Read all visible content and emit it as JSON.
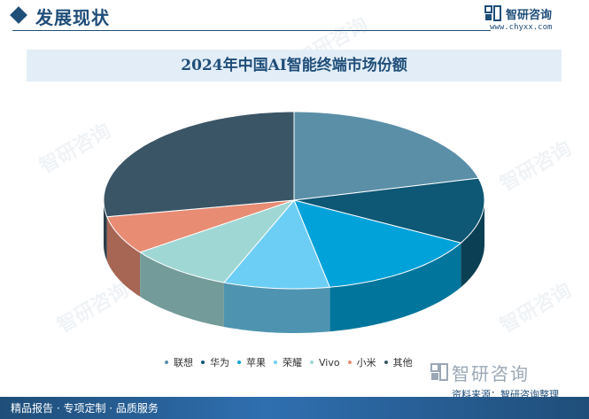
{
  "header": {
    "section_title": "发展现状",
    "brand_name": "智研咨询",
    "brand_url": "www.chyxx.com"
  },
  "chart_data": {
    "type": "pie",
    "title": "2024年中国AI智能终端市场份额",
    "categories": [
      "联想",
      "华为",
      "苹果",
      "荣耀",
      "Vivo",
      "小米",
      "其他"
    ],
    "values": [
      21,
      12,
      14,
      9,
      9,
      7,
      28
    ],
    "colors": [
      "#5b8fa8",
      "#0e5775",
      "#01a2d9",
      "#6dcef5",
      "#9fd7d4",
      "#e88c74",
      "#3a5566"
    ],
    "legend_position": "bottom"
  },
  "footer": {
    "source": "资料来源：智研咨询整理",
    "brand_name": "智研咨询",
    "services": "精品报告 · 专项定制 · 品质服务"
  }
}
